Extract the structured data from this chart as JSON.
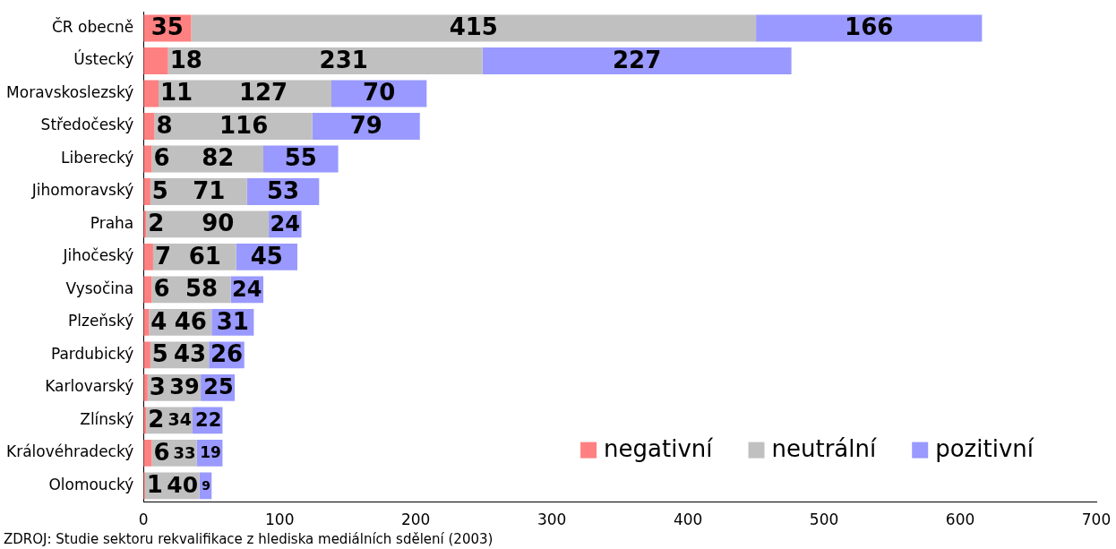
{
  "chart_data": {
    "type": "bar",
    "orientation": "horizontal",
    "stacked": true,
    "categories": [
      "ČR obecně",
      "Ústecký",
      "Moravskoslezský",
      "Středočeský",
      "Liberecký",
      "Jihomoravský",
      "Praha",
      "Jihočeský",
      "Vysočina",
      "Plzeňský",
      "Pardubický",
      "Karlovarský",
      "Zlínský",
      "Královéhradecký",
      "Olomoucký"
    ],
    "series": [
      {
        "name": "negativní",
        "color": "#ff8080",
        "values": [
          35,
          18,
          11,
          8,
          6,
          5,
          2,
          7,
          6,
          4,
          5,
          3,
          2,
          6,
          1
        ]
      },
      {
        "name": "neutrální",
        "color": "#c0c0c0",
        "values": [
          415,
          231,
          127,
          116,
          82,
          71,
          90,
          61,
          58,
          46,
          43,
          39,
          34,
          33,
          40
        ]
      },
      {
        "name": "pozitivní",
        "color": "#9999ff",
        "values": [
          166,
          227,
          70,
          79,
          55,
          53,
          24,
          45,
          24,
          31,
          26,
          25,
          22,
          19,
          9
        ]
      }
    ],
    "xlim": [
      0,
      700
    ],
    "xticks": [
      0,
      100,
      200,
      300,
      400,
      500,
      600,
      700
    ],
    "grid": false,
    "legend": "bottom right",
    "data_labels": true,
    "annotations": [
      "ZDROJ: Studie sektoru rekvalifikace z hlediska mediálních sdělení (2003)"
    ]
  }
}
